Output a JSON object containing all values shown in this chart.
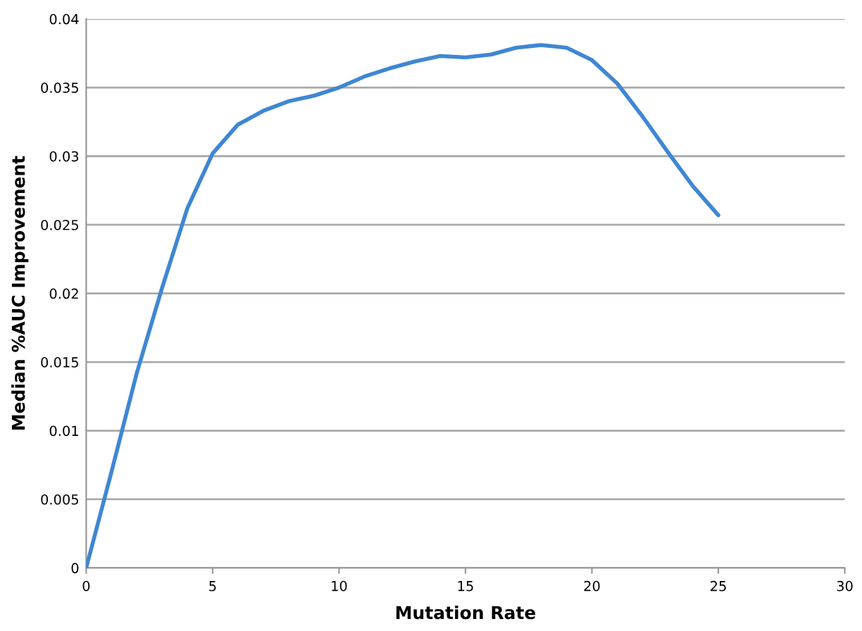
{
  "chart_data": {
    "type": "line",
    "xlabel": "Mutation Rate",
    "ylabel": "Median %AUC Improvement",
    "x": [
      0,
      1,
      2,
      3,
      4,
      5,
      6,
      7,
      8,
      9,
      10,
      11,
      12,
      13,
      14,
      15,
      16,
      17,
      18,
      19,
      20,
      21,
      22,
      23,
      24,
      25
    ],
    "series": [
      {
        "color": "#3f87d2",
        "values": [
          0,
          0.007,
          0.0142,
          0.0204,
          0.0262,
          0.0302,
          0.0323,
          0.0333,
          0.034,
          0.0344,
          0.035,
          0.0358,
          0.0364,
          0.0369,
          0.0373,
          0.0372,
          0.0374,
          0.0379,
          0.0381,
          0.0379,
          0.037,
          0.0353,
          0.0329,
          0.0303,
          0.0278,
          0.0257
        ]
      }
    ],
    "xlim": [
      0,
      30
    ],
    "xticks": [
      0,
      5,
      10,
      15,
      20,
      25,
      30
    ],
    "ylim": [
      0,
      0.04
    ],
    "yticks": [
      0,
      0.005,
      0.01,
      0.015,
      0.02,
      0.025,
      0.03,
      0.035,
      0.04
    ],
    "grid": "y",
    "marker": "none",
    "line_style": "solid"
  }
}
